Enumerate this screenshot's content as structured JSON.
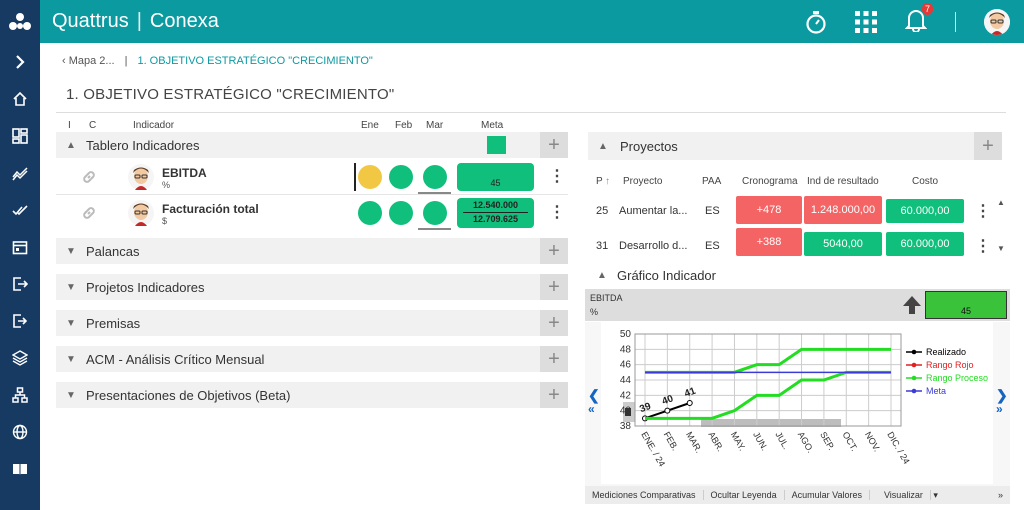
{
  "topbar": {
    "brand_name": "Quattrus",
    "brand_product": "Conexa",
    "notif_count": "7"
  },
  "breadcrumb": {
    "back": "Mapa 2...",
    "current": "1. OBJETIVO ESTRATÉGICO \"CRECIMIENTO\""
  },
  "page_title": "1. OBJETIVO ESTRATÉGICO \"CRECIMIENTO\"",
  "left_columns": {
    "i": "I",
    "c": "C",
    "indicador": "Indicador",
    "ene": "Ene",
    "feb": "Feb",
    "mar": "Mar",
    "meta": "Meta"
  },
  "panels": {
    "tablero": "Tablero Indicadores",
    "palancas": "Palancas",
    "projetos": "Projetos Indicadores",
    "premisas": "Premisas",
    "acm": "ACM - Análisis Crítico Mensual",
    "presentaciones": "Presentaciones de Objetivos (Beta)"
  },
  "indicators": [
    {
      "name": "EBITDA",
      "unit": "%",
      "ene": "#f2c744",
      "feb": "#0fbf7b",
      "mar": "#0fbf7b",
      "meta": "45"
    },
    {
      "name": "Facturación total",
      "unit": "$",
      "ene": "#0fbf7b",
      "feb": "#0fbf7b",
      "mar": "#0fbf7b",
      "meta_top": "12.540.000",
      "meta_bottom": "12.709.625"
    }
  ],
  "proyectos": {
    "title": "Proyectos",
    "headers": {
      "p": "P",
      "proyecto": "Proyecto",
      "paa": "PAA",
      "cronograma": "Cronograma",
      "ind": "Ind de resultado",
      "costo": "Costo"
    },
    "rows": [
      {
        "p": "25",
        "name": "Aumentar la...",
        "paa": "ES",
        "crono": "+478",
        "ind": "1.248.000,00",
        "costo": "60.000,00"
      },
      {
        "p": "31",
        "name": "Desarrollo d...",
        "paa": "ES",
        "crono": "+388",
        "ind": "5040,00",
        "costo": "60.000,00"
      }
    ]
  },
  "grafico": {
    "title": "Gráfico Indicador",
    "indicator_name": "EBITDA",
    "indicator_unit": "%",
    "meta_value": "45",
    "legend": [
      "Realizado",
      "Rango Rojo",
      "Rango Proceso",
      "Meta"
    ],
    "footer": [
      "Mediciones Comparativas",
      "Ocultar Leyenda",
      "Acumular Valores",
      "Visualizar"
    ]
  },
  "chart_data": {
    "type": "line",
    "x": [
      "ENE. / 24",
      "FEB.",
      "MAR.",
      "ABR.",
      "MAY.",
      "JUN.",
      "JUL.",
      "AGO.",
      "SEP.",
      "OCT.",
      "NOV.",
      "DIC. / 24"
    ],
    "ylim": [
      38,
      50
    ],
    "yticks": [
      38,
      40,
      42,
      44,
      46,
      48,
      50
    ],
    "series": [
      {
        "name": "Realizado",
        "color": "#000000",
        "values": [
          39,
          40,
          41,
          null,
          null,
          null,
          null,
          null,
          null,
          null,
          null,
          null
        ]
      },
      {
        "name": "Rango Rojo",
        "color": "#e02020",
        "values": [
          null,
          null,
          null,
          null,
          null,
          null,
          null,
          null,
          null,
          null,
          null,
          null
        ]
      },
      {
        "name": "Rango Proceso",
        "color": "#22dd22",
        "values": [
          39,
          39,
          39,
          39,
          40,
          42,
          42,
          44,
          44,
          45,
          45,
          45
        ]
      },
      {
        "name": "Rango Proceso",
        "color": "#22dd22",
        "values": [
          45,
          45,
          45,
          45,
          45,
          46,
          46,
          48,
          48,
          48,
          48,
          48
        ]
      },
      {
        "name": "Meta",
        "color": "#3b3bd6",
        "values": [
          45,
          45,
          45,
          45,
          45,
          45,
          45,
          45,
          45,
          45,
          45,
          45
        ]
      }
    ],
    "data_labels": [
      {
        "x": "ENE. / 24",
        "value": "39"
      },
      {
        "x": "FEB.",
        "value": "40"
      },
      {
        "x": "MAR.",
        "value": "41"
      }
    ],
    "grid": true,
    "legend_position": "right"
  }
}
